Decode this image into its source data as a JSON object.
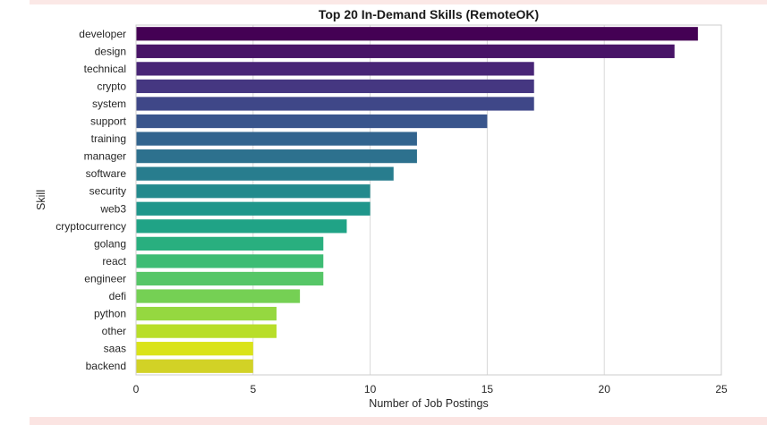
{
  "chart_data": {
    "type": "bar",
    "orientation": "horizontal",
    "title": "Top 20 In-Demand Skills (RemoteOK)",
    "xlabel": "Number of Job Postings",
    "ylabel": "Skill",
    "xlim": [
      0,
      25
    ],
    "xticks": [
      "0",
      "5",
      "10",
      "15",
      "20",
      "25"
    ],
    "grid": "vertical gridlines on",
    "legend": "none",
    "categories": [
      "developer",
      "design",
      "technical",
      "crypto",
      "system",
      "support",
      "training",
      "manager",
      "software",
      "security",
      "web3",
      "cryptocurrency",
      "golang",
      "react",
      "engineer",
      "defi",
      "python",
      "other",
      "saas",
      "backend"
    ],
    "values": [
      24,
      23,
      17,
      17,
      17,
      15,
      12,
      12,
      11,
      10,
      10,
      9,
      8,
      8,
      8,
      7,
      6,
      6,
      5,
      5
    ],
    "colors": [
      "#440154",
      "#481467",
      "#482576",
      "#453781",
      "#3f4788",
      "#39558c",
      "#32648e",
      "#2d718e",
      "#287d8e",
      "#238a8d",
      "#1f968b",
      "#20a386",
      "#29af7f",
      "#3dbc74",
      "#56c667",
      "#75d054",
      "#95d840",
      "#b8de29",
      "#dae319",
      "#d2d226"
    ]
  }
}
